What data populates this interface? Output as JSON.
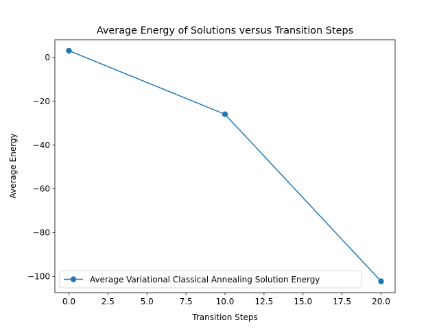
{
  "chart_data": {
    "type": "line",
    "title": "Average Energy of Solutions versus Transition Steps",
    "xlabel": "Transition Steps",
    "ylabel": "Average Energy",
    "xlim": [
      -0.9,
      20.9
    ],
    "ylim": [
      -107.4,
      8.0
    ],
    "x_ticks": [
      0.0,
      2.5,
      5.0,
      7.5,
      10.0,
      12.5,
      15.0,
      17.5,
      20.0
    ],
    "x_tick_labels": [
      "0.0",
      "2.5",
      "5.0",
      "7.5",
      "10.0",
      "12.5",
      "15.0",
      "17.5",
      "20.0"
    ],
    "y_ticks": [
      0,
      -20,
      -40,
      -60,
      -80,
      -100
    ],
    "y_tick_labels": [
      "0",
      "−20",
      "−40",
      "−60",
      "−80",
      "−100"
    ],
    "grid": false,
    "legend_position": "lower-left",
    "series": [
      {
        "name": "Average Variational Classical Annealing Solution Energy",
        "color": "#1f77b4",
        "marker": "circle",
        "x": [
          0,
          10,
          20
        ],
        "y": [
          3.0,
          -26.0,
          -102.2
        ]
      }
    ]
  }
}
